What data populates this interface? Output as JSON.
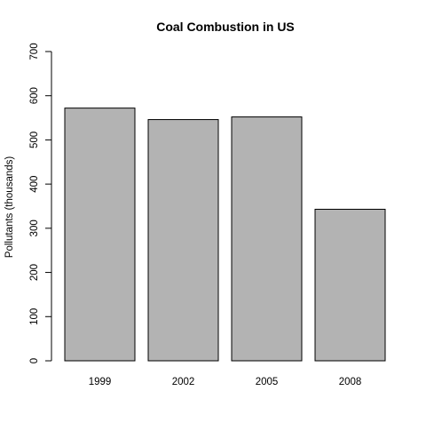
{
  "chart_data": {
    "type": "bar",
    "title": "Coal Combustion in US",
    "xlabel": "",
    "ylabel": "Pollutants (thousands)",
    "categories": [
      "1999",
      "2002",
      "2005",
      "2008"
    ],
    "values": [
      572,
      546,
      552,
      343
    ],
    "ylim": [
      0,
      700
    ],
    "yticks": [
      0,
      100,
      200,
      300,
      400,
      500,
      600,
      700
    ],
    "grid": false,
    "bar_fill": "#b3b3b3",
    "bar_stroke": "#000000"
  }
}
